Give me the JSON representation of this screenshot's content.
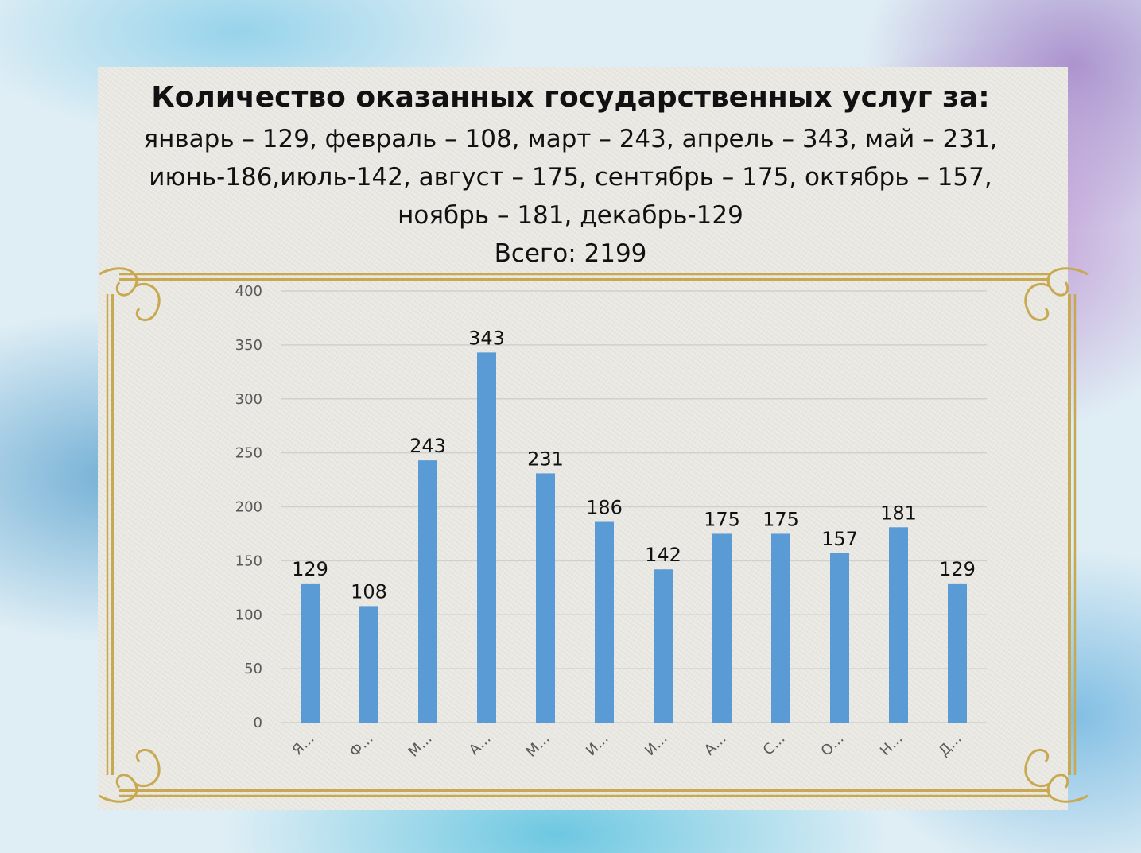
{
  "slide": {
    "title": "Количество оказанных государственных услуг за:",
    "line1": "январь – 129, февраль – 108, март – 243, апрель – 343, май – 231,",
    "line2": "июнь-186,июль-142, август – 175, сентябрь – 175, октябрь – 157,",
    "line3": "ноябрь – 181, декабрь-129",
    "total": "Всего: 2199"
  },
  "colors": {
    "bar": "#5b9bd5",
    "frame": "#c8a951"
  },
  "chart_data": {
    "type": "bar",
    "categories": [
      "Я...",
      "Ф...",
      "М...",
      "А...",
      "М...",
      "И...",
      "И...",
      "А...",
      "С...",
      "О...",
      "Н...",
      "Д..."
    ],
    "values": [
      129,
      108,
      243,
      343,
      231,
      186,
      142,
      175,
      175,
      157,
      181,
      129
    ],
    "ylim": [
      0,
      400
    ],
    "yticks": [
      0,
      50,
      100,
      150,
      200,
      250,
      300,
      350,
      400
    ],
    "grid": true,
    "legend": "none",
    "title": "",
    "xlabel": "",
    "ylabel": ""
  }
}
